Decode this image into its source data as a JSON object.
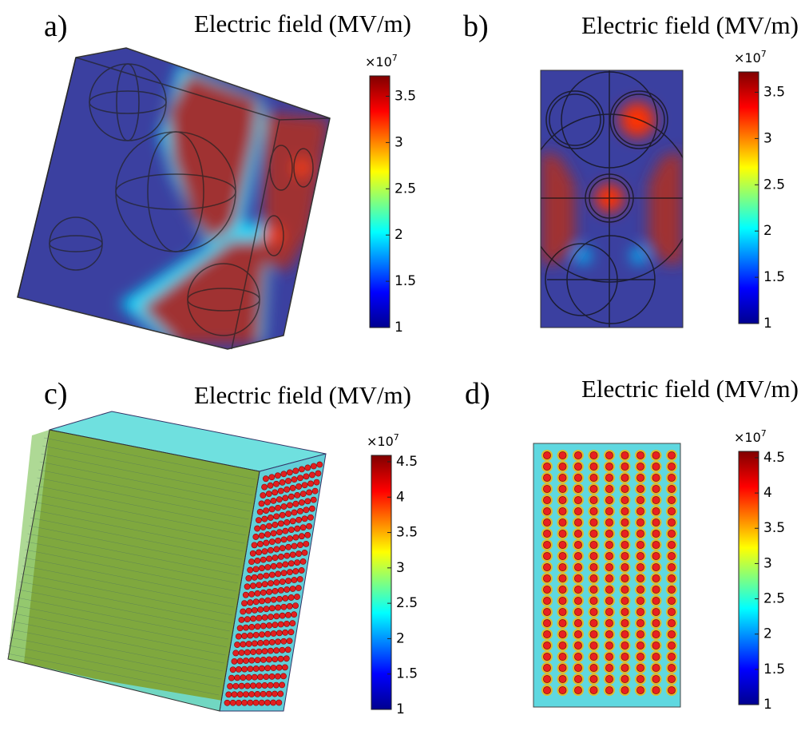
{
  "panels": [
    {
      "label": "a)",
      "title": "Electric field (MV/m)",
      "colorbar": {
        "multiplier": {
          "base": "×10",
          "exponent": "7"
        },
        "lim": [
          1,
          3.72
        ],
        "ticks": [
          1,
          1.5,
          2,
          2.5,
          3,
          3.5
        ]
      }
    },
    {
      "label": "b)",
      "title": "Electric field (MV/m)",
      "colorbar": {
        "multiplier": {
          "base": "×10",
          "exponent": "7"
        },
        "lim": [
          1,
          3.72
        ],
        "ticks": [
          1,
          1.5,
          2,
          2.5,
          3,
          3.5
        ]
      }
    },
    {
      "label": "c)",
      "title": "Electric field (MV/m)",
      "colorbar": {
        "multiplier": {
          "base": "×10",
          "exponent": "7"
        },
        "lim": [
          1,
          4.59
        ],
        "ticks": [
          1,
          1.5,
          2,
          2.5,
          3,
          3.5,
          4,
          4.5
        ]
      }
    },
    {
      "label": "d)",
      "title": "Electric field (MV/m)",
      "colorbar": {
        "multiplier": {
          "base": "×10",
          "exponent": "7"
        },
        "lim": [
          1,
          4.59
        ],
        "ticks": [
          1,
          1.5,
          2,
          2.5,
          3,
          3.5,
          4,
          4.5
        ]
      }
    }
  ]
}
